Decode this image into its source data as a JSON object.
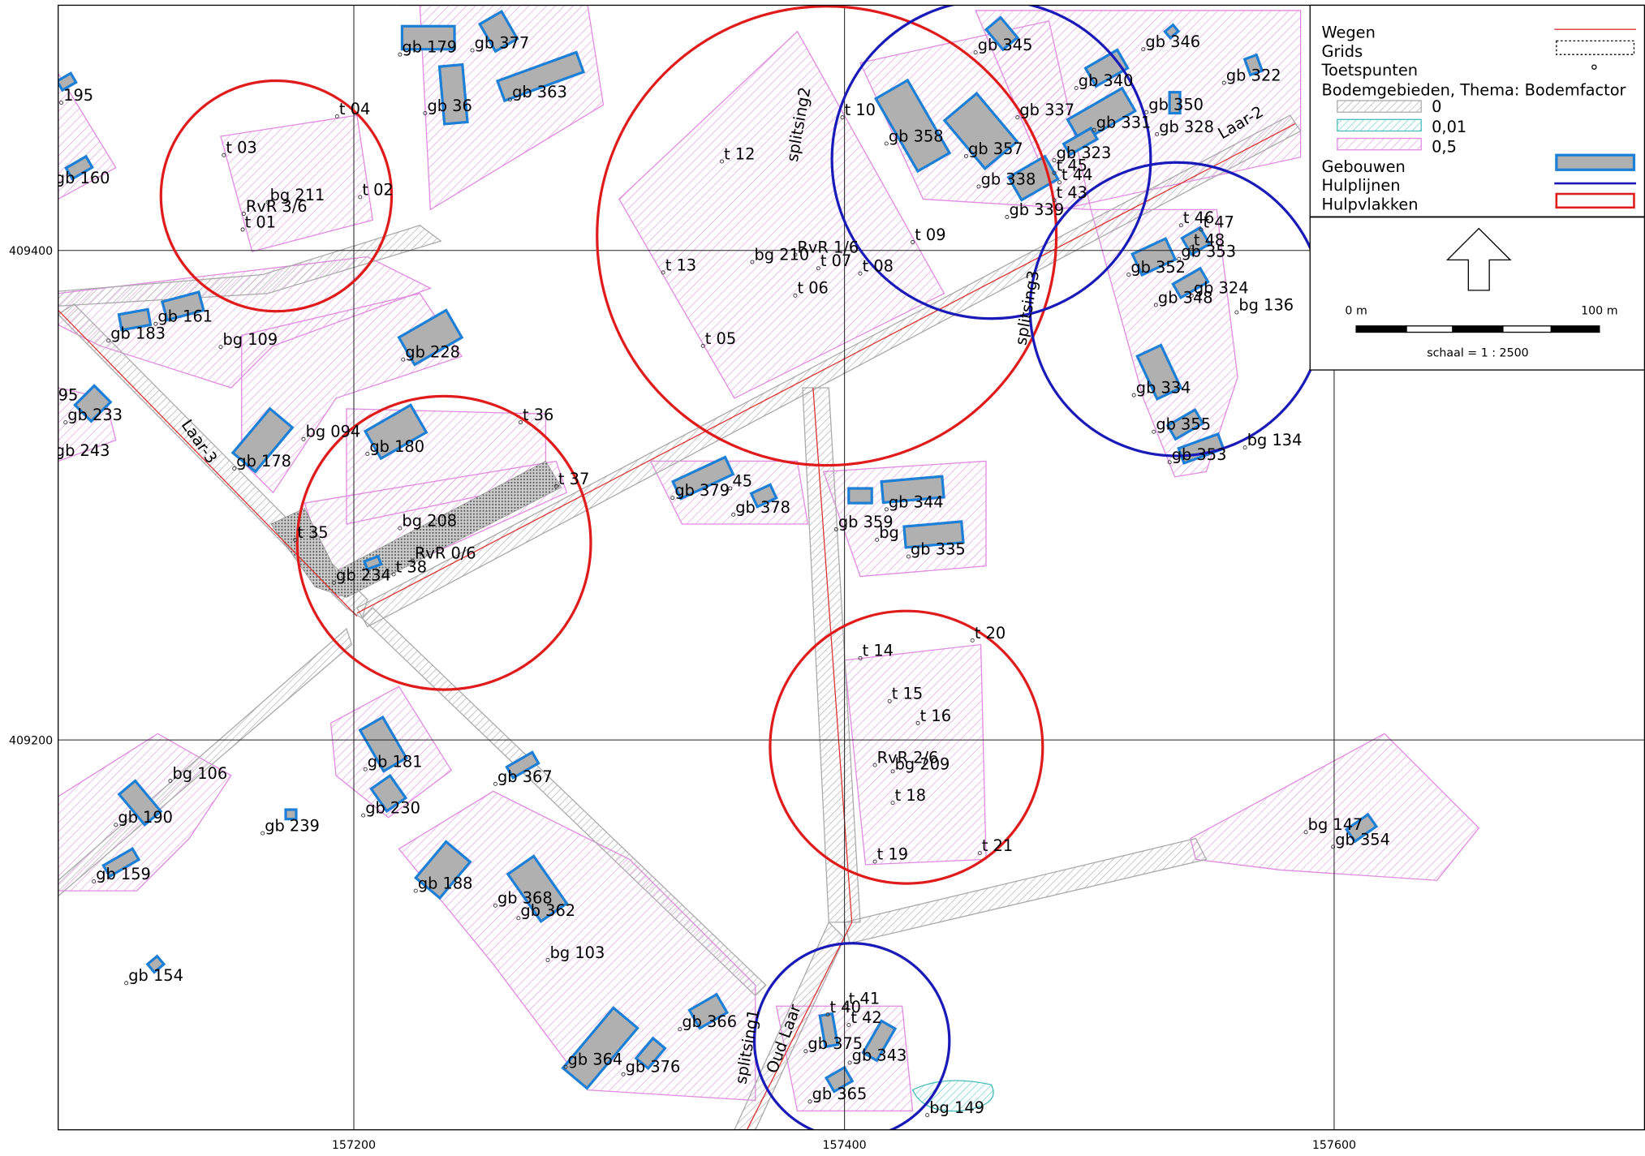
{
  "map": {
    "labels": [
      "gb 179",
      "gb 377",
      "gb 363",
      "gb 36",
      "195",
      "gb 160",
      "t 03",
      "t 04",
      "bg 211",
      "RvR 3/6",
      "t 02",
      "t 01",
      "gb 183",
      "gb 161",
      "bg 109",
      "gb 228",
      "95",
      "gb 233",
      "gb 243",
      "Laar-3",
      "gb 178",
      "bg 094",
      "gb 180",
      "t 36",
      "t 37",
      "t 35",
      "bg 208",
      "RvR 0/6",
      "t 38",
      "gb 234",
      "t 12",
      "splitsing2",
      "t 10",
      "gb 358",
      "gb 357",
      "gb 338",
      "gb 339",
      "gb 345",
      "gb 346",
      "gb 340",
      "gb 337",
      "gb 331",
      "gb 350",
      "gb 328",
      "gb 323",
      "t 45",
      "t 44",
      "t 43",
      "gb 322",
      "Laar-2",
      "t 09",
      "RvR 1/6",
      "bg 210",
      "t 07",
      "t 08",
      "t 13",
      "t 06",
      "t 05",
      "splitsing3",
      "t 46",
      "t 47",
      "t 48",
      "gb 353",
      "gb 352",
      "gb 324",
      "gb 348",
      "bg 136",
      "gb 334",
      "gb 355",
      "gb 353",
      "bg 134",
      "gb 379",
      "45",
      "gb 378",
      "gb 359",
      "gb 344",
      "bg",
      "gb 335",
      "t 20",
      "t 14",
      "t 15",
      "t 16",
      "RvR 2/6",
      "bg 209",
      "t 18",
      "t 19",
      "t 21",
      "bg 106",
      "gb 181",
      "gb 230",
      "gb 367",
      "gb 190",
      "gb 239",
      "gb 159",
      "gb 188",
      "gb 368",
      "gb 362",
      "bg 103",
      "gb 154",
      "bg 147",
      "gb 354",
      "t 41",
      "t 40",
      "t 42",
      "gb 375",
      "gb 343",
      "gb 364",
      "gb 376",
      "gb 366",
      "gb 365",
      "bg 149",
      "splitsing1",
      "Oud Laar"
    ],
    "grid_labels_y": [
      "409400",
      "409200"
    ],
    "grid_labels_x": [
      "157200",
      "157400",
      "157600"
    ],
    "legend": {
      "items": [
        "Wegen",
        "Grids",
        "Toetspunten",
        "Bodemgebieden, Thema: Bodemfactor",
        "0",
        "0,01",
        "0,5",
        "Gebouwen",
        "Hulplijnen",
        "Hulpvlakken"
      ],
      "scale_start": "0 m",
      "scale_end": "100 m",
      "scale": "schaal = 1 : 2500"
    }
  }
}
